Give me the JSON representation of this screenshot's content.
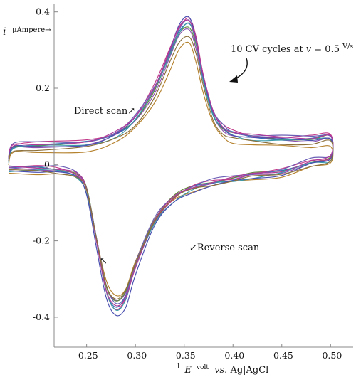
{
  "chart_data": {
    "type": "line",
    "title": "",
    "ylabel": {
      "symbol": "i",
      "unit": "μAmpere→"
    },
    "xlabel": {
      "arrow": "↑",
      "symbol": "E",
      "unit": "volt",
      "rest_italic": "vs.",
      "rest": " Ag|AgCl"
    },
    "xlim": [
      -0.17,
      -0.51
    ],
    "ylim": [
      -0.43,
      0.405
    ],
    "x_ticks": [
      {
        "value": -0.25,
        "label": "-0.25"
      },
      {
        "value": -0.3,
        "label": "-0.30"
      },
      {
        "value": -0.35,
        "label": "-0.35"
      },
      {
        "value": -0.4,
        "label": "-0.40"
      },
      {
        "value": -0.45,
        "label": "-0.45"
      },
      {
        "value": -0.5,
        "label": "-0.50"
      }
    ],
    "y_ticks": [
      {
        "value": 0.4,
        "label": "0.4"
      },
      {
        "value": 0.2,
        "label": "0.2"
      },
      {
        "value": 0,
        "label": "0"
      },
      {
        "value": -0.2,
        "label": "-0.2"
      },
      {
        "value": -0.4,
        "label": "-0.4"
      }
    ],
    "grid": false,
    "annotations": {
      "cycles": "10 CV cycles at 𝑣 = 0.5",
      "cycles_unit": "V/s",
      "direct_scan": "Direct scan↗",
      "reverse_scan": "↙Reverse scan",
      "arrow_small": "↖"
    },
    "forward_scan": {
      "x": [
        -0.17,
        -0.175,
        -0.2,
        -0.25,
        -0.28,
        -0.3,
        -0.32,
        -0.335,
        -0.345,
        -0.355,
        -0.362,
        -0.37,
        -0.38,
        -0.39,
        -0.4,
        -0.42,
        -0.45,
        -0.48,
        -0.5
      ],
      "y": [
        0.012,
        0.045,
        0.05,
        0.055,
        0.078,
        0.12,
        0.2,
        0.29,
        0.35,
        0.37,
        0.32,
        0.22,
        0.13,
        0.095,
        0.08,
        0.07,
        0.066,
        0.066,
        0.07
      ]
    },
    "reverse_scan": {
      "x": [
        -0.5,
        -0.48,
        -0.45,
        -0.42,
        -0.4,
        -0.38,
        -0.36,
        -0.34,
        -0.32,
        -0.3,
        -0.29,
        -0.28,
        -0.27,
        -0.26,
        -0.25,
        -0.24,
        -0.22,
        -0.2,
        -0.17
      ],
      "y": [
        0.015,
        0.005,
        -0.02,
        -0.03,
        -0.04,
        -0.048,
        -0.062,
        -0.09,
        -0.15,
        -0.27,
        -0.35,
        -0.375,
        -0.33,
        -0.2,
        -0.07,
        -0.03,
        -0.015,
        -0.012,
        -0.012
      ]
    },
    "series": [
      {
        "color": "#b5822e",
        "scale": 0.89,
        "shift": -0.012
      },
      {
        "color": "#8a4fb0",
        "scale": 0.96,
        "shift": 0.0
      },
      {
        "color": "#5d8a3a",
        "scale": 0.97,
        "shift": 0.004
      },
      {
        "color": "#2e77b5",
        "scale": 1.0,
        "shift": 0.002
      },
      {
        "color": "#c23a8a",
        "scale": 1.02,
        "shift": 0.006
      },
      {
        "color": "#3a9aa8",
        "scale": 1.0,
        "shift": -0.003
      },
      {
        "color": "#6a5fb5",
        "scale": 0.99,
        "shift": 0.008
      },
      {
        "color": "#4a4fb0",
        "scale": 1.05,
        "shift": -0.004
      },
      {
        "color": "#b03a9a",
        "scale": 1.01,
        "shift": 0.005
      },
      {
        "color": "#8a6f3a",
        "scale": 0.93,
        "shift": -0.006
      }
    ]
  }
}
